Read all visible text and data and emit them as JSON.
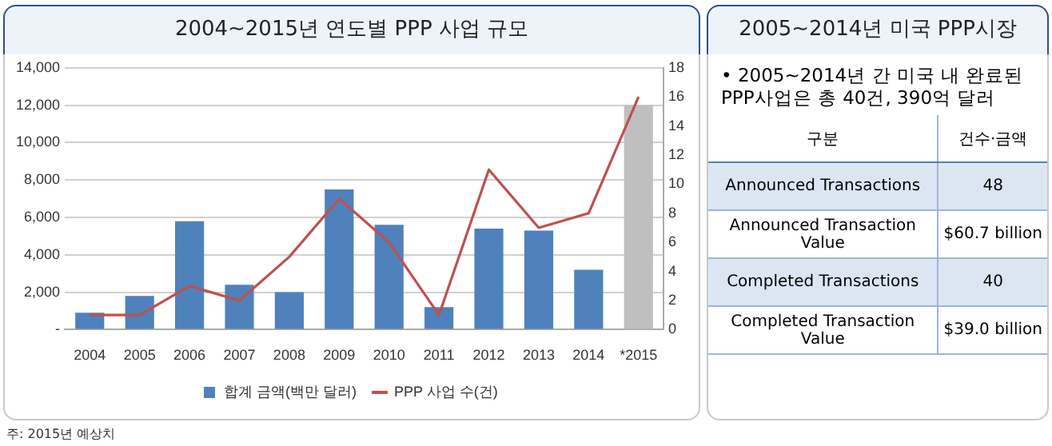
{
  "chart_data": [
    {
      "type": "bar",
      "title": "2004~2015년 연도별 PPP 사업 규모",
      "categories": [
        "2004",
        "2005",
        "2006",
        "2007",
        "2008",
        "2009",
        "2010",
        "2011",
        "2012",
        "2013",
        "2014",
        "*2015"
      ],
      "series": [
        {
          "name": "합계 금액(백만 달러)",
          "type": "bar",
          "colors": [
            "#4f81bd",
            "#4f81bd",
            "#4f81bd",
            "#4f81bd",
            "#4f81bd",
            "#4f81bd",
            "#4f81bd",
            "#4f81bd",
            "#4f81bd",
            "#4f81bd",
            "#4f81bd",
            "#bfbfbf"
          ],
          "color": "#4f81bd",
          "values": [
            900,
            1800,
            5800,
            2400,
            2000,
            7500,
            5600,
            1200,
            5400,
            5300,
            3200,
            12000
          ]
        },
        {
          "name": "PPP 사업 수(건)",
          "type": "line",
          "axis": "y2",
          "color": "#c0504d",
          "values": [
            1,
            1,
            3,
            2,
            5,
            9,
            6,
            1,
            11,
            7,
            8,
            16
          ]
        }
      ],
      "ylim": [
        0,
        14000
      ],
      "yticks": [
        {
          "value": 0,
          "label": "-"
        },
        {
          "value": 2000,
          "label": "2,000"
        },
        {
          "value": 4000,
          "label": "4,000"
        },
        {
          "value": 6000,
          "label": "6,000"
        },
        {
          "value": 8000,
          "label": "8,000"
        },
        {
          "value": 10000,
          "label": "10,000"
        },
        {
          "value": 12000,
          "label": "12,000"
        },
        {
          "value": 14000,
          "label": "14,000"
        }
      ],
      "y2lim": [
        0,
        18
      ],
      "y2ticks": [
        0,
        2,
        4,
        6,
        8,
        10,
        12,
        14,
        16,
        18
      ],
      "grid": "y",
      "legend": "bottom",
      "marker": "none",
      "annotations": [
        "주: 2015년 예상치"
      ]
    },
    {
      "type": "other",
      "title": "2005~2014년 미국 PPP시장",
      "annotations": [
        "• 2005~2014년 간 미국 내 완료된 PPP사업은 총 40건, 390억 달러",
        "구분",
        "건수·금액",
        "Announced Transactions",
        "48",
        "Announced Transaction Value",
        "$60.7 billion",
        "Completed Transactions",
        "40",
        "Completed Transaction Value",
        "$39.0 billion"
      ]
    }
  ]
}
